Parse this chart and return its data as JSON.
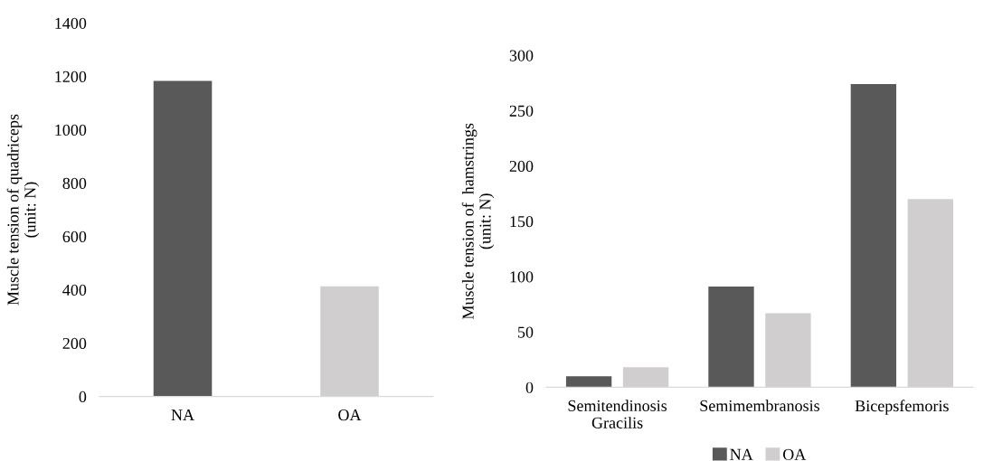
{
  "chart_data": [
    {
      "type": "bar",
      "ylabel": "Muscle tension of quadriceps\n(unit: N)",
      "categories": [
        "NA",
        "OA"
      ],
      "values": [
        1183,
        413
      ],
      "colors": [
        "#595959",
        "#d0cece"
      ],
      "ylim": [
        0,
        1400
      ],
      "yticks": [
        0,
        200,
        400,
        600,
        800,
        1000,
        1200,
        1400
      ],
      "grid": false,
      "legend": false
    },
    {
      "type": "bar",
      "ylabel": "Muscle tension of  hamstrings\n(unit: N)",
      "categories": [
        "Semitendinosis\nGracilis",
        "Semimembranosis",
        "Bicepsfemoris"
      ],
      "series": [
        {
          "name": "NA",
          "color": "#595959",
          "values": [
            10,
            91,
            274
          ]
        },
        {
          "name": "OA",
          "color": "#d0cece",
          "values": [
            18,
            67,
            170
          ]
        }
      ],
      "ylim": [
        0,
        300
      ],
      "yticks": [
        0,
        50,
        100,
        150,
        200,
        250,
        300
      ],
      "grid": false,
      "legend": "bottom"
    }
  ]
}
